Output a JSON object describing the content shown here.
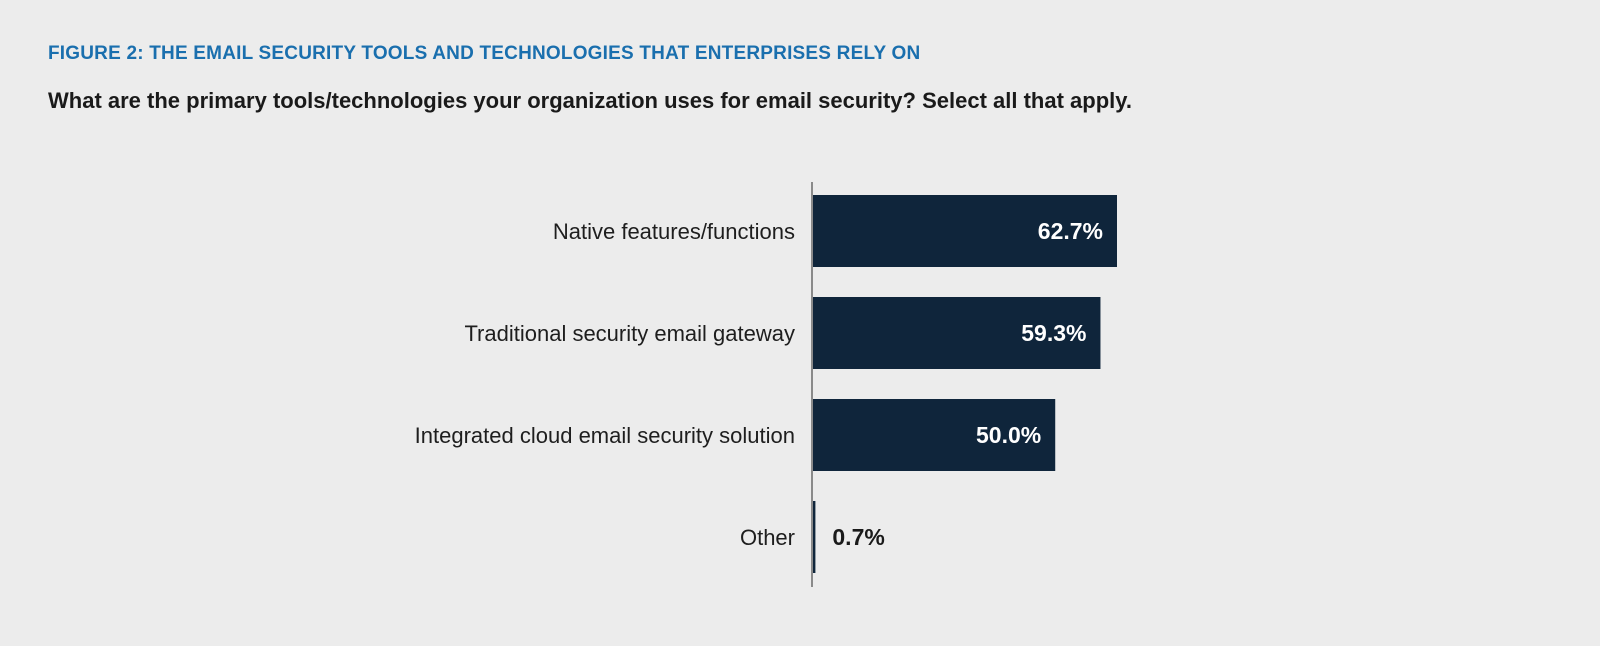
{
  "figure": {
    "title": "FIGURE 2: THE EMAIL SECURITY TOOLS AND TECHNOLOGIES THAT ENTERPRISES RELY ON",
    "question": "What are the primary tools/technologies your organization uses for email security? Select all that apply."
  },
  "colors": {
    "background": "#ececec",
    "title": "#1a6fae",
    "bar": "#0f253b",
    "axis": "#8a8a8a",
    "label_inside": "#ffffff",
    "label_outside": "#1a1a1a"
  },
  "chart_data": {
    "type": "bar",
    "orientation": "horizontal",
    "categories": [
      "Native features/functions",
      "Traditional security email gateway",
      "Integrated cloud email security solution",
      "Other"
    ],
    "values": [
      62.7,
      59.3,
      50.0,
      0.7
    ],
    "value_labels": [
      "62.7%",
      "59.3%",
      "50.0%",
      "0.7%"
    ],
    "unit": "%",
    "xlim": [
      0,
      100
    ],
    "grid": false,
    "legend": "none",
    "title": "",
    "xlabel": "",
    "ylabel": ""
  }
}
